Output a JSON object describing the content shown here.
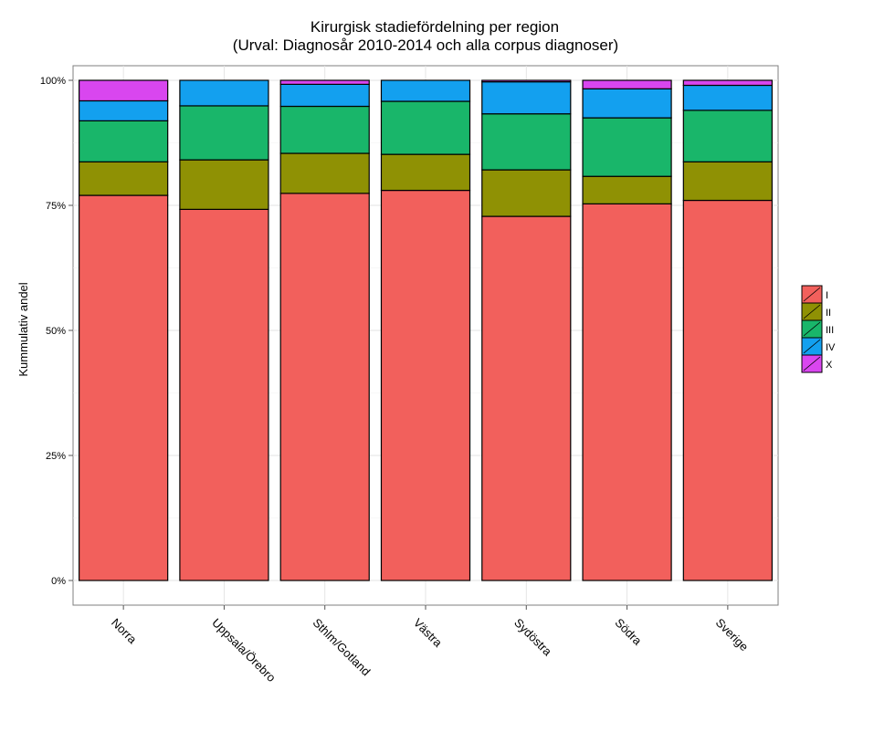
{
  "chart_data": {
    "type": "bar",
    "stacked": true,
    "title": "Kirurgisk stadiefördelning per region",
    "subtitle": "(Urval: Diagnosår 2010-2014 och alla corpus diagnoser)",
    "xlabel": "",
    "ylabel": "Kummulativ andel",
    "ylim": [
      0,
      1
    ],
    "yticks": [
      0,
      0.25,
      0.5,
      0.75,
      1
    ],
    "ytick_labels": [
      "0%",
      "25%",
      "50%",
      "75%",
      "100%"
    ],
    "grid": true,
    "legend_position": "right",
    "categories": [
      "Norra",
      "Uppsala/Örebro",
      "Sthlm/Gotland",
      "Västra",
      "Sydöstra",
      "Södra",
      "Sverige"
    ],
    "series": [
      {
        "name": "I",
        "color": "#F2605C",
        "values": [
          0.77,
          0.742,
          0.774,
          0.78,
          0.728,
          0.753,
          0.76
        ]
      },
      {
        "name": "II",
        "color": "#8F9104",
        "values": [
          0.067,
          0.099,
          0.08,
          0.072,
          0.093,
          0.055,
          0.077
        ]
      },
      {
        "name": "III",
        "color": "#19B66A",
        "values": [
          0.082,
          0.108,
          0.094,
          0.106,
          0.112,
          0.117,
          0.103
        ]
      },
      {
        "name": "IV",
        "color": "#13A0EF",
        "values": [
          0.04,
          0.051,
          0.044,
          0.042,
          0.064,
          0.058,
          0.05
        ]
      },
      {
        "name": "X",
        "color": "#D946EF",
        "values": [
          0.041,
          0.0,
          0.008,
          0.0,
          0.003,
          0.017,
          0.01
        ]
      }
    ]
  }
}
